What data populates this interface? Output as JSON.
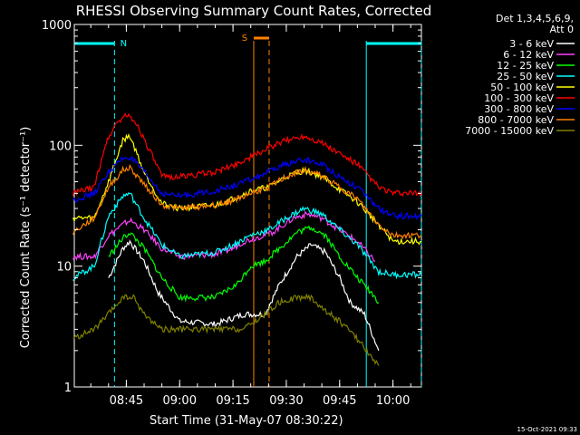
{
  "chart_data": {
    "type": "line",
    "title": "RHESSI Observing Summary Count Rates, Corrected",
    "ylabel": "Corrected Count Rate (s⁻¹ detector⁻¹)",
    "xlabel": "Start Time (31-May-07 08:30:22)",
    "yscale": "log",
    "ylim": [
      1,
      1000
    ],
    "xlim": [
      "08:30:22",
      "10:08:00"
    ],
    "yticks": [
      {
        "v": 1,
        "label": "1"
      },
      {
        "v": 10,
        "label": "10"
      },
      {
        "v": 100,
        "label": "100"
      },
      {
        "v": 1000,
        "label": "1000"
      }
    ],
    "xticks": [
      {
        "t": "08:45",
        "label": "08:45"
      },
      {
        "t": "09:00",
        "label": "09:00"
      },
      {
        "t": "09:15",
        "label": "09:15"
      },
      {
        "t": "09:30",
        "label": "09:30"
      },
      {
        "t": "09:45",
        "label": "09:45"
      },
      {
        "t": "10:00",
        "label": "10:00"
      }
    ],
    "legend_header": [
      "Det 1,3,4,5,6,9,",
      "Att 0"
    ],
    "legend_position": "top-right outside",
    "series": [
      {
        "name": "3 - 6 keV",
        "color": "#ffffff",
        "points": [
          [
            "08:40",
            8
          ],
          [
            "08:44",
            14
          ],
          [
            "08:46",
            16
          ],
          [
            "08:50",
            11
          ],
          [
            "08:54",
            6
          ],
          [
            "09:00",
            3.5
          ],
          [
            "09:10",
            3.3
          ],
          [
            "09:18",
            4
          ],
          [
            "09:24",
            4
          ],
          [
            "09:28",
            7
          ],
          [
            "09:33",
            12
          ],
          [
            "09:37",
            15
          ],
          [
            "09:41",
            13
          ],
          [
            "09:45",
            8
          ],
          [
            "09:48",
            5
          ],
          [
            "09:52",
            4
          ],
          [
            "09:56",
            2
          ]
        ]
      },
      {
        "name": "6 - 12 keV",
        "color": "#ff40ff",
        "points": [
          [
            "08:30",
            12
          ],
          [
            "08:36",
            12
          ],
          [
            "08:40",
            18
          ],
          [
            "08:44",
            22
          ],
          [
            "08:46",
            24
          ],
          [
            "08:50",
            20
          ],
          [
            "08:55",
            14
          ],
          [
            "09:00",
            12
          ],
          [
            "09:10",
            12.5
          ],
          [
            "09:15",
            14
          ],
          [
            "09:18",
            16
          ],
          [
            "09:21",
            17
          ],
          [
            "09:26",
            19
          ],
          [
            "09:32",
            25
          ],
          [
            "09:36",
            27
          ],
          [
            "09:40",
            25
          ],
          [
            "09:45",
            20
          ],
          [
            "09:50",
            16
          ],
          [
            "09:55",
            11
          ]
        ]
      },
      {
        "name": "12 - 25 keV",
        "color": "#00ff00",
        "points": [
          [
            "08:40",
            12
          ],
          [
            "08:44",
            17
          ],
          [
            "08:46",
            19
          ],
          [
            "08:50",
            14
          ],
          [
            "08:55",
            8
          ],
          [
            "09:00",
            5.5
          ],
          [
            "09:10",
            5.5
          ],
          [
            "09:16",
            7
          ],
          [
            "09:20",
            10
          ],
          [
            "09:24",
            11
          ],
          [
            "09:28",
            14
          ],
          [
            "09:33",
            19
          ],
          [
            "09:37",
            21
          ],
          [
            "09:41",
            18
          ],
          [
            "09:45",
            12
          ],
          [
            "09:50",
            8
          ],
          [
            "09:54",
            6
          ],
          [
            "09:56",
            5
          ]
        ]
      },
      {
        "name": "25 - 50 keV",
        "color": "#00ffff",
        "points": [
          [
            "08:30",
            8
          ],
          [
            "08:36",
            10
          ],
          [
            "08:40",
            26
          ],
          [
            "08:44",
            38
          ],
          [
            "08:46",
            40
          ],
          [
            "08:50",
            25
          ],
          [
            "08:55",
            15
          ],
          [
            "09:00",
            12
          ],
          [
            "09:10",
            13
          ],
          [
            "09:15",
            15
          ],
          [
            "09:20",
            18
          ],
          [
            "09:25",
            20
          ],
          [
            "09:30",
            25
          ],
          [
            "09:35",
            30
          ],
          [
            "09:40",
            27
          ],
          [
            "09:45",
            20
          ],
          [
            "09:50",
            15
          ],
          [
            "09:56",
            9
          ],
          [
            "10:00",
            8.5
          ],
          [
            "10:08",
            8.5
          ]
        ]
      },
      {
        "name": "50 - 100 keV",
        "color": "#ffff00",
        "points": [
          [
            "08:30",
            25
          ],
          [
            "08:36",
            25
          ],
          [
            "08:40",
            50
          ],
          [
            "08:44",
            110
          ],
          [
            "08:46",
            120
          ],
          [
            "08:50",
            60
          ],
          [
            "08:55",
            33
          ],
          [
            "09:00",
            30
          ],
          [
            "09:10",
            32
          ],
          [
            "09:15",
            36
          ],
          [
            "09:20",
            42
          ],
          [
            "09:25",
            45
          ],
          [
            "09:30",
            55
          ],
          [
            "09:35",
            62
          ],
          [
            "09:40",
            55
          ],
          [
            "09:45",
            43
          ],
          [
            "09:50",
            34
          ],
          [
            "09:56",
            22
          ],
          [
            "10:00",
            16
          ],
          [
            "10:08",
            16
          ]
        ]
      },
      {
        "name": "100 - 300 keV",
        "color": "#ff0000",
        "points": [
          [
            "08:30",
            40
          ],
          [
            "08:36",
            45
          ],
          [
            "08:39",
            100
          ],
          [
            "08:42",
            150
          ],
          [
            "08:45",
            180
          ],
          [
            "08:48",
            150
          ],
          [
            "08:52",
            85
          ],
          [
            "08:55",
            55
          ],
          [
            "09:00",
            55
          ],
          [
            "09:10",
            60
          ],
          [
            "09:15",
            68
          ],
          [
            "09:20",
            80
          ],
          [
            "09:25",
            95
          ],
          [
            "09:30",
            110
          ],
          [
            "09:35",
            120
          ],
          [
            "09:40",
            105
          ],
          [
            "09:45",
            85
          ],
          [
            "09:50",
            70
          ],
          [
            "09:56",
            45
          ],
          [
            "10:00",
            40
          ],
          [
            "10:08",
            40
          ]
        ]
      },
      {
        "name": "300 - 800 keV",
        "color": "#0000ff",
        "points": [
          [
            "08:30",
            35
          ],
          [
            "08:36",
            40
          ],
          [
            "08:40",
            60
          ],
          [
            "08:44",
            78
          ],
          [
            "08:46",
            80
          ],
          [
            "08:50",
            60
          ],
          [
            "08:55",
            40
          ],
          [
            "09:00",
            38
          ],
          [
            "09:10",
            42
          ],
          [
            "09:15",
            46
          ],
          [
            "09:20",
            52
          ],
          [
            "09:25",
            60
          ],
          [
            "09:30",
            70
          ],
          [
            "09:35",
            76
          ],
          [
            "09:40",
            70
          ],
          [
            "09:45",
            55
          ],
          [
            "09:50",
            45
          ],
          [
            "09:56",
            30
          ],
          [
            "10:00",
            26
          ],
          [
            "10:08",
            26
          ]
        ]
      },
      {
        "name": "800 - 7000 keV",
        "color": "#ff8000",
        "points": [
          [
            "08:30",
            19
          ],
          [
            "08:36",
            25
          ],
          [
            "08:40",
            45
          ],
          [
            "08:44",
            62
          ],
          [
            "08:46",
            65
          ],
          [
            "08:50",
            48
          ],
          [
            "08:55",
            32
          ],
          [
            "09:00",
            30
          ],
          [
            "09:10",
            32
          ],
          [
            "09:15",
            35
          ],
          [
            "09:20",
            40
          ],
          [
            "09:25",
            45
          ],
          [
            "09:30",
            55
          ],
          [
            "09:35",
            62
          ],
          [
            "09:40",
            56
          ],
          [
            "09:45",
            45
          ],
          [
            "09:50",
            36
          ],
          [
            "09:56",
            22
          ],
          [
            "10:00",
            18
          ],
          [
            "10:08",
            18
          ]
        ]
      },
      {
        "name": "7000 - 15000 keV",
        "color": "#808000",
        "points": [
          [
            "08:30",
            2.5
          ],
          [
            "08:36",
            3
          ],
          [
            "08:40",
            4
          ],
          [
            "08:44",
            5.5
          ],
          [
            "08:47",
            5.5
          ],
          [
            "08:50",
            4
          ],
          [
            "08:55",
            3
          ],
          [
            "09:00",
            3
          ],
          [
            "09:10",
            3
          ],
          [
            "09:18",
            3
          ],
          [
            "09:24",
            4
          ],
          [
            "09:28",
            5
          ],
          [
            "09:33",
            5.5
          ],
          [
            "09:37",
            5.5
          ],
          [
            "09:40",
            4.5
          ],
          [
            "09:45",
            3.5
          ],
          [
            "09:50",
            2.5
          ],
          [
            "09:56",
            1.5
          ]
        ]
      }
    ],
    "bars": [
      {
        "label": "N",
        "color": "#00ffff",
        "segments": [
          [
            "08:30:22",
            "08:41:40"
          ],
          [
            "09:52:30",
            "10:08:00"
          ]
        ]
      },
      {
        "label": "S",
        "color": "#ff8000",
        "segments": [
          [
            "09:20:50",
            "09:25:10"
          ]
        ]
      }
    ],
    "markers": [
      {
        "t": "08:41:40",
        "color": "#00ffff",
        "dashed": true
      },
      {
        "t": "09:52:30",
        "color": "#00ffff",
        "dashed": false
      },
      {
        "t": "10:08:00",
        "color": "#00ffff",
        "dashed": true
      },
      {
        "t": "09:20:50",
        "color": "#ff8000",
        "dashed": false
      },
      {
        "t": "09:25:10",
        "color": "#ff8000",
        "dashed": true
      }
    ]
  },
  "footer": {
    "timestamp": "15-Oct-2021 09:33"
  }
}
